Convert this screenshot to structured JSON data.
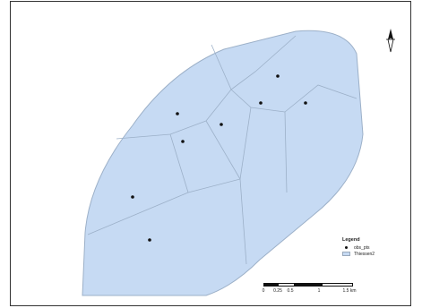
{
  "map": {
    "polygon_fill": "#c6daf3",
    "polygon_stroke": "#9cb0c8",
    "point_color": "#111111"
  },
  "legend": {
    "title": "Legend",
    "items": [
      {
        "label": "obs_pts",
        "symbol": "point"
      },
      {
        "label": "Thiessen2",
        "symbol": "polygon"
      }
    ]
  },
  "scale_bar": {
    "labels": [
      "0",
      "0.25",
      "0.5",
      "1",
      "1.5 km"
    ]
  },
  "north_arrow": {
    "icon": "north-arrow-icon"
  }
}
